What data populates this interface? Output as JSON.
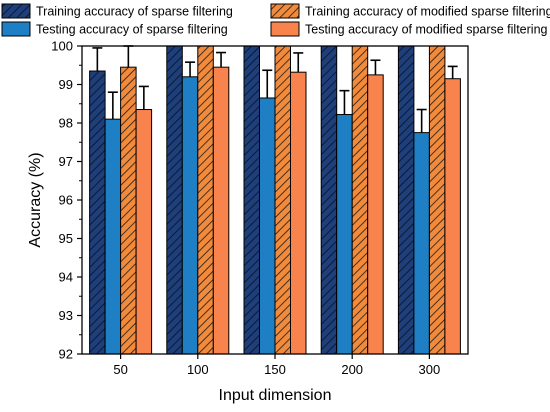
{
  "chart_data": {
    "type": "bar",
    "xlabel": "Input dimension",
    "ylabel": "Accuracy (%)",
    "ylim": [
      92,
      100
    ],
    "yticks": [
      "92",
      "93",
      "94",
      "95",
      "96",
      "97",
      "98",
      "99",
      "100"
    ],
    "categories": [
      "50",
      "100",
      "150",
      "200",
      "300"
    ],
    "legend_placement": "top",
    "series": [
      {
        "name": "Training accuracy of sparse filtering",
        "color": "#1f3f7a",
        "pattern": "hatch",
        "values": [
          99.35,
          100,
          100,
          100,
          100
        ],
        "errors": [
          0.6,
          0,
          0,
          0,
          0
        ]
      },
      {
        "name": "Testing accuracy of sparse filtering",
        "color": "#1f7fc4",
        "pattern": "solid",
        "values": [
          98.1,
          99.2,
          98.65,
          98.22,
          97.75
        ],
        "errors": [
          0.7,
          0.38,
          0.72,
          0.62,
          0.6
        ]
      },
      {
        "name": "Training accuracy of modified sparse filtering",
        "color": "#f28a3c",
        "pattern": "hatch",
        "values": [
          99.45,
          100,
          100,
          100,
          100
        ],
        "errors": [
          0.55,
          0,
          0,
          0,
          0
        ]
      },
      {
        "name": "Testing accuracy of modified sparse filtering",
        "color": "#f9834d",
        "pattern": "solid",
        "values": [
          98.35,
          99.45,
          99.32,
          99.25,
          99.15
        ],
        "errors": [
          0.6,
          0.38,
          0.5,
          0.38,
          0.32
        ]
      }
    ]
  }
}
